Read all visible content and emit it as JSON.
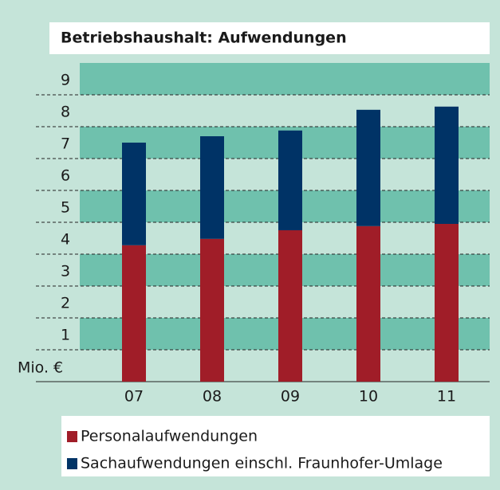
{
  "chart_data": {
    "type": "stacked_bar",
    "title": "Betriebshaushalt: Aufwendungen",
    "y_label": "Mio. €",
    "categories": [
      "07",
      "08",
      "09",
      "10",
      "11"
    ],
    "series": [
      {
        "name": "Personalaufwendungen",
        "color": "#a01d28",
        "values": [
          4.28,
          4.48,
          4.75,
          4.88,
          4.95
        ]
      },
      {
        "name": "Sachaufwendungen einschl. Fraunhofer-Umlage",
        "color": "#003366",
        "values": [
          3.22,
          3.22,
          3.13,
          3.65,
          3.68
        ]
      }
    ],
    "ylim": [
      0,
      10
    ],
    "yticks": [
      1,
      2,
      3,
      4,
      5,
      6,
      7,
      8,
      9
    ],
    "grid": true
  }
}
